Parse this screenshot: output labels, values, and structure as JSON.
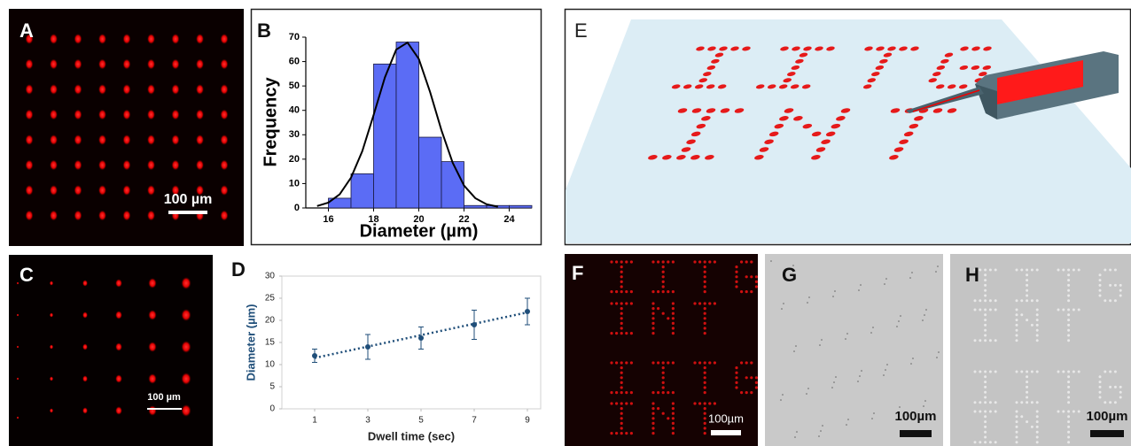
{
  "panels": {
    "A": {
      "label": "A",
      "scale_bar": "100 µm"
    },
    "B": {
      "label": "B"
    },
    "C": {
      "label": "C",
      "scale_bar": "100 µm"
    },
    "D": {
      "label": "D"
    },
    "E": {
      "label": "E"
    },
    "F": {
      "label": "F",
      "scale_bar": "100µm"
    },
    "G": {
      "label": "G",
      "scale_bar": "100µm"
    },
    "H": {
      "label": "H",
      "scale_bar": "100µm"
    }
  },
  "chart_data": [
    {
      "type": "histogram",
      "xlabel": "Diameter (µm)",
      "ylabel": "Frequency",
      "bins": [
        16,
        17,
        18,
        19,
        20,
        21,
        22,
        23,
        24,
        25
      ],
      "values": [
        4,
        14,
        59,
        68,
        29,
        19,
        1,
        1,
        1
      ],
      "color": "#5b6cf5",
      "fit": {
        "x": [
          15.5,
          16,
          16.5,
          17,
          17.5,
          18,
          18.5,
          19,
          19.5,
          20,
          20.5,
          21,
          21.5,
          22,
          22.5,
          23,
          23.5
        ],
        "values": [
          0.8,
          2.2,
          5.6,
          12.4,
          23.3,
          38.1,
          53.5,
          64.9,
          67.8,
          61.1,
          47.5,
          31.9,
          18.5,
          9.2,
          4.0,
          1.5,
          0.5
        ],
        "color": "#000000"
      },
      "xlim": [
        15,
        25
      ],
      "ylim": [
        0,
        70
      ],
      "xticks": [
        16,
        18,
        20,
        22,
        24
      ],
      "yticks": [
        0,
        10,
        20,
        30,
        40,
        50,
        60,
        70
      ]
    },
    {
      "type": "line",
      "xlabel": "Dwell time (sec)",
      "ylabel": "Diameter (µm)",
      "x": [
        1,
        3,
        5,
        7,
        9
      ],
      "values": [
        12,
        14,
        16,
        19,
        22
      ],
      "errors": [
        1.5,
        2.8,
        2.5,
        3.3,
        3
      ],
      "color": "#1f4e79",
      "trend": {
        "x": [
          1,
          9
        ],
        "values": [
          11.5,
          21.8
        ]
      },
      "xlim": [
        0,
        9.5
      ],
      "ylim": [
        0,
        30
      ],
      "xticks": [
        1,
        3,
        5,
        7,
        9
      ],
      "yticks": [
        0,
        5,
        10,
        15,
        20,
        25,
        30
      ]
    }
  ]
}
